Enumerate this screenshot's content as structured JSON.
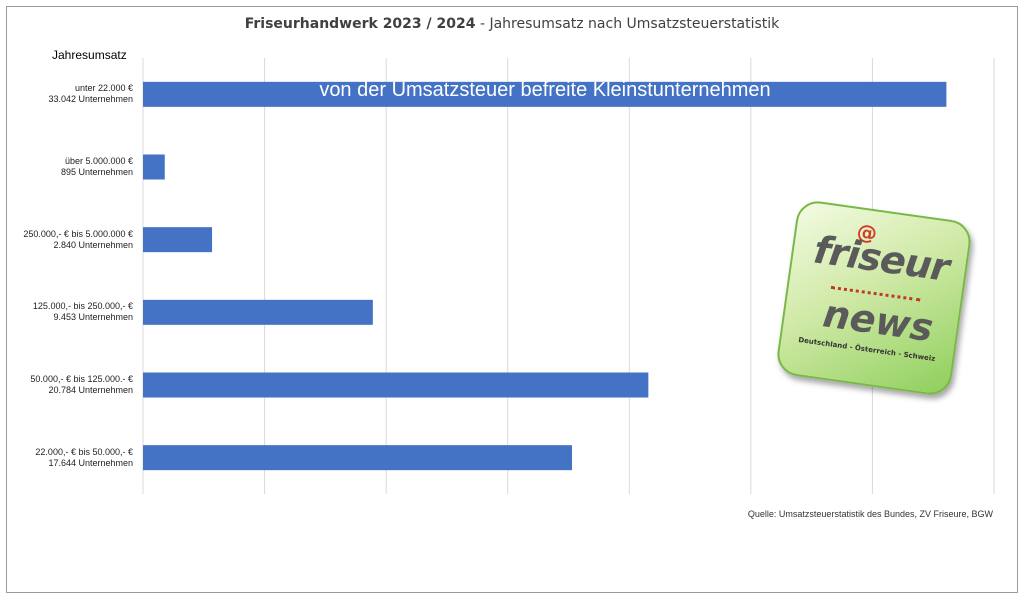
{
  "chart_data": {
    "type": "bar",
    "orientation": "horizontal",
    "title": "Friseurhandwerk 2023 / 2024",
    "title_separator": "-",
    "subtitle": "Jahresumsatz nach Umsatzsteuerstatistik",
    "ylabel": "Jahresumsatz",
    "categories": [
      {
        "range": "unter 22.000 €",
        "count": "33.042 Unternehmen"
      },
      {
        "range": "über 5.000.000 €",
        "count": "895 Unternehmen"
      },
      {
        "range": "250.000,- € bis 5.000.000 €",
        "count": "2.840 Unternehmen"
      },
      {
        "range": "125.000,-  bis 250.000,- €",
        "count": "9.453 Unternehmen"
      },
      {
        "range": "50.000,- € bis 125.000.- €",
        "count": "20.784 Unternehmen"
      },
      {
        "range": "22.000,- € bis 50.000,- €",
        "count": "17.644 Unternehmen"
      }
    ],
    "values": [
      33042,
      895,
      2840,
      9453,
      20784,
      17644
    ],
    "xlim": [
      0,
      35000
    ],
    "x_gridlines": [
      5000,
      10000,
      15000,
      20000,
      25000,
      30000,
      35000
    ],
    "grid": true,
    "bar_color": "#4472c4",
    "annotation": "von der Umsatzsteuer befreite Kleinstunternehmen",
    "source": "Quelle: Umsatzsteuerstatistik des Bundes, ZV Friseure, BGW"
  },
  "logo": {
    "at": "@",
    "word1": "friseur",
    "word2": "news",
    "tagline": "Deutschland - Österreich - Schweiz"
  }
}
